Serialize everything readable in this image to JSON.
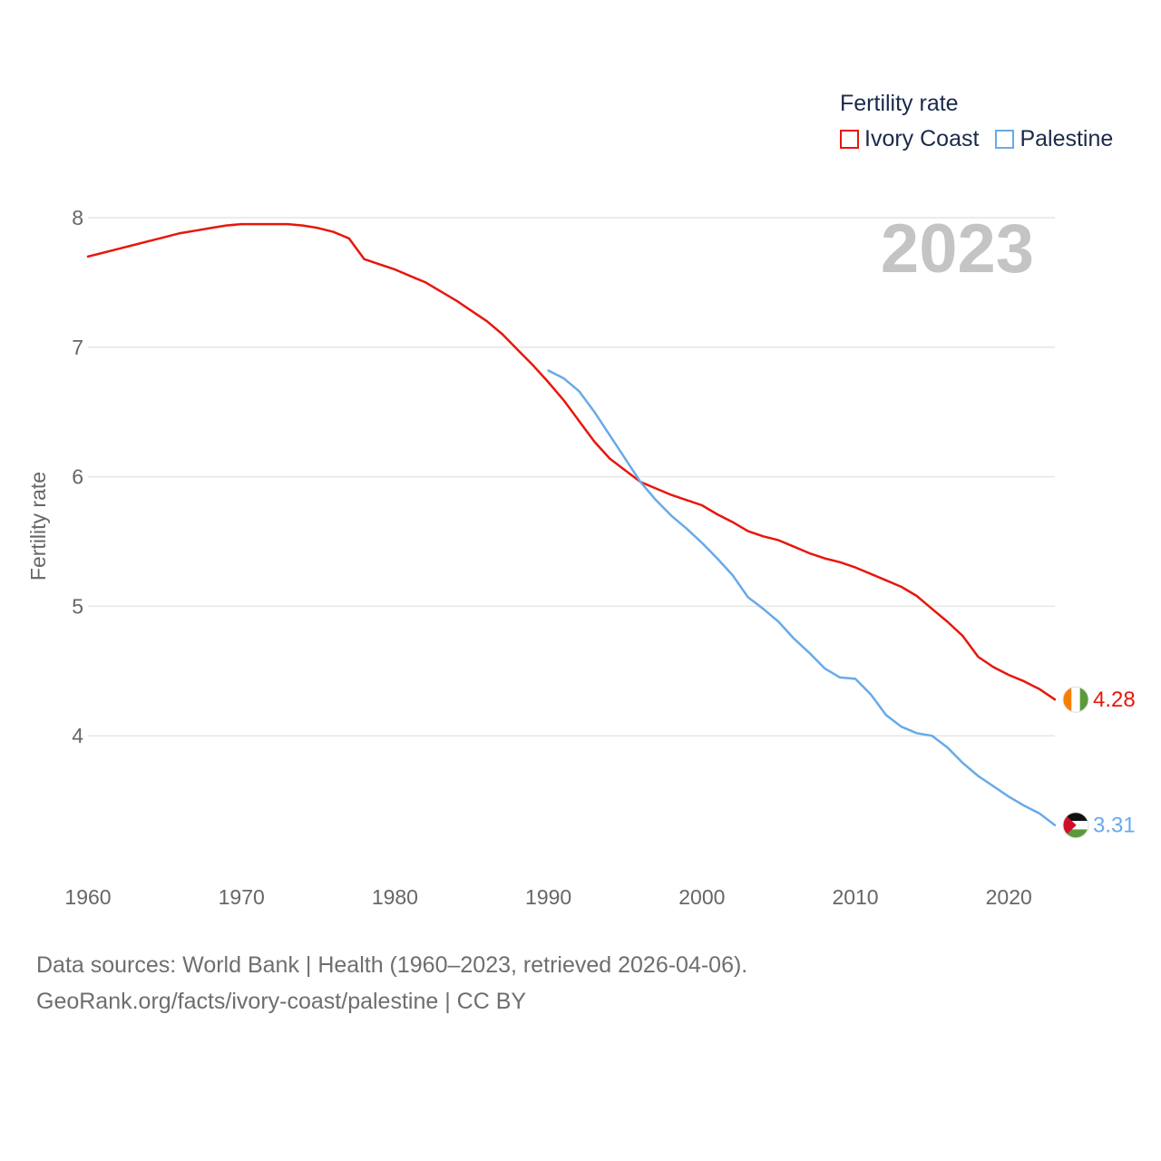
{
  "legend": {
    "title": "Fertility rate",
    "items": [
      {
        "label": "Ivory Coast",
        "color": "#e8160c"
      },
      {
        "label": "Palestine",
        "color": "#68aae8"
      }
    ]
  },
  "footer": {
    "line1": "Data sources: World Bank | Health (1960–2023, retrieved 2026-04-06).",
    "line2": "GeoRank.org/facts/ivory-coast/palestine | CC BY"
  },
  "chart_data": {
    "type": "line",
    "title": "Fertility rate",
    "year_label": "2023",
    "xlabel": "",
    "ylabel": "Fertility rate",
    "xlim": [
      1960,
      2023
    ],
    "ylim": [
      3,
      8
    ],
    "x_ticks": [
      1960,
      1970,
      1980,
      1990,
      2000,
      2010,
      2020
    ],
    "y_ticks": [
      4,
      5,
      6,
      7,
      8
    ],
    "grid": true,
    "legend_position": "top-right",
    "series": [
      {
        "name": "Ivory Coast",
        "color": "#e8160c",
        "end_label": "4.28",
        "flag": "ivory-coast",
        "x": [
          1960,
          1961,
          1962,
          1963,
          1964,
          1965,
          1966,
          1967,
          1968,
          1969,
          1970,
          1971,
          1972,
          1973,
          1974,
          1975,
          1976,
          1977,
          1978,
          1979,
          1980,
          1981,
          1982,
          1983,
          1984,
          1985,
          1986,
          1987,
          1988,
          1989,
          1990,
          1991,
          1992,
          1993,
          1994,
          1995,
          1996,
          1997,
          1998,
          1999,
          2000,
          2001,
          2002,
          2003,
          2004,
          2005,
          2006,
          2007,
          2008,
          2009,
          2010,
          2011,
          2012,
          2013,
          2014,
          2015,
          2016,
          2017,
          2018,
          2019,
          2020,
          2021,
          2022,
          2023
        ],
        "values": [
          7.7,
          7.73,
          7.76,
          7.79,
          7.82,
          7.85,
          7.88,
          7.9,
          7.92,
          7.94,
          7.95,
          7.95,
          7.95,
          7.95,
          7.94,
          7.92,
          7.89,
          7.84,
          7.68,
          7.64,
          7.6,
          7.55,
          7.5,
          7.43,
          7.36,
          7.28,
          7.2,
          7.1,
          6.98,
          6.86,
          6.73,
          6.59,
          6.43,
          6.27,
          6.14,
          6.05,
          5.96,
          5.91,
          5.86,
          5.82,
          5.78,
          5.71,
          5.65,
          5.58,
          5.54,
          5.51,
          5.46,
          5.41,
          5.37,
          5.34,
          5.3,
          5.25,
          5.2,
          5.15,
          5.08,
          4.98,
          4.88,
          4.77,
          4.61,
          4.53,
          4.47,
          4.42,
          4.36,
          4.28
        ]
      },
      {
        "name": "Palestine",
        "color": "#68aae8",
        "end_label": "3.31",
        "flag": "palestine",
        "x": [
          1990,
          1991,
          1992,
          1993,
          1994,
          1995,
          1996,
          1997,
          1998,
          1999,
          2000,
          2001,
          2002,
          2003,
          2004,
          2005,
          2006,
          2007,
          2008,
          2009,
          2010,
          2011,
          2012,
          2013,
          2014,
          2015,
          2016,
          2017,
          2018,
          2019,
          2020,
          2021,
          2022,
          2023
        ],
        "values": [
          6.82,
          6.76,
          6.66,
          6.5,
          6.32,
          6.14,
          5.96,
          5.82,
          5.7,
          5.6,
          5.49,
          5.37,
          5.24,
          5.07,
          4.98,
          4.88,
          4.75,
          4.64,
          4.52,
          4.45,
          4.44,
          4.32,
          4.16,
          4.07,
          4.02,
          4.0,
          3.91,
          3.79,
          3.69,
          3.61,
          3.53,
          3.46,
          3.4,
          3.31
        ]
      }
    ]
  }
}
